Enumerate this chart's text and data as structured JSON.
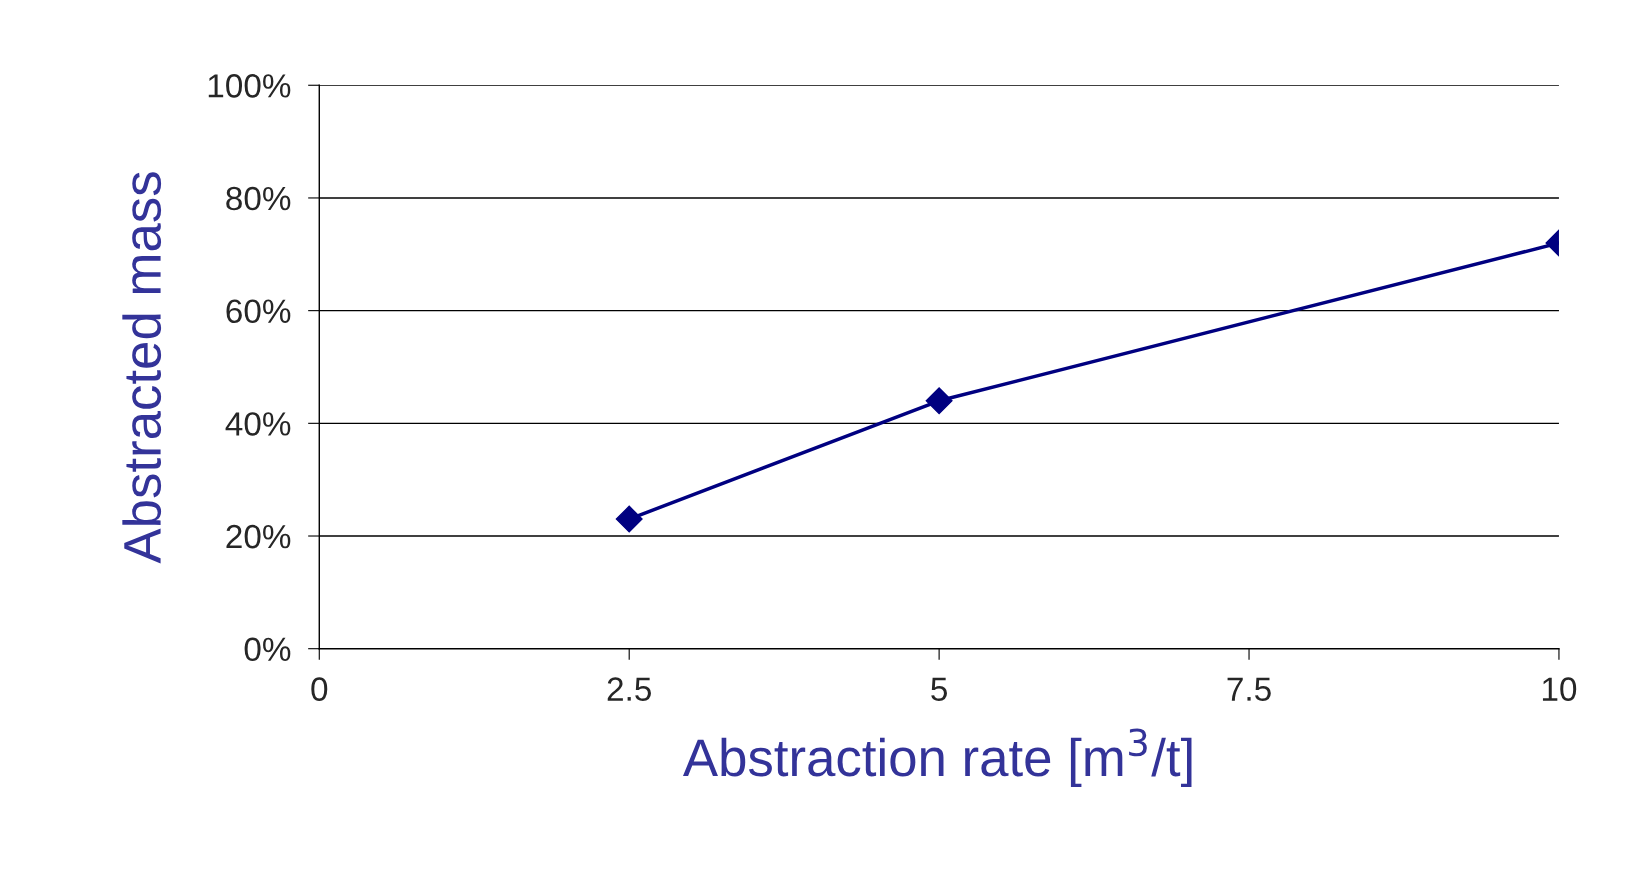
{
  "chart_data": {
    "type": "line",
    "xlabel": "Abstraction rate [m$^{3}$/t]",
    "ylabel": "Abstracted mass",
    "x": [
      2.5,
      5,
      10
    ],
    "series": [
      {
        "color": "#000080",
        "values": [
          23,
          44,
          72
        ]
      }
    ],
    "xlim": [
      0,
      10
    ],
    "xticks": [
      0,
      2.5,
      5,
      7.5,
      10
    ],
    "ylim": [
      0,
      100
    ],
    "yticks": [
      {
        "value": 0,
        "label": "0%"
      },
      {
        "value": 20,
        "label": "20%"
      },
      {
        "value": 40,
        "label": "40%"
      },
      {
        "value": 60,
        "label": "60%"
      },
      {
        "value": 80,
        "label": "80%"
      },
      {
        "value": 100,
        "label": "100%"
      }
    ],
    "grid": "y",
    "marker": "diamond",
    "line_style": "solid"
  }
}
